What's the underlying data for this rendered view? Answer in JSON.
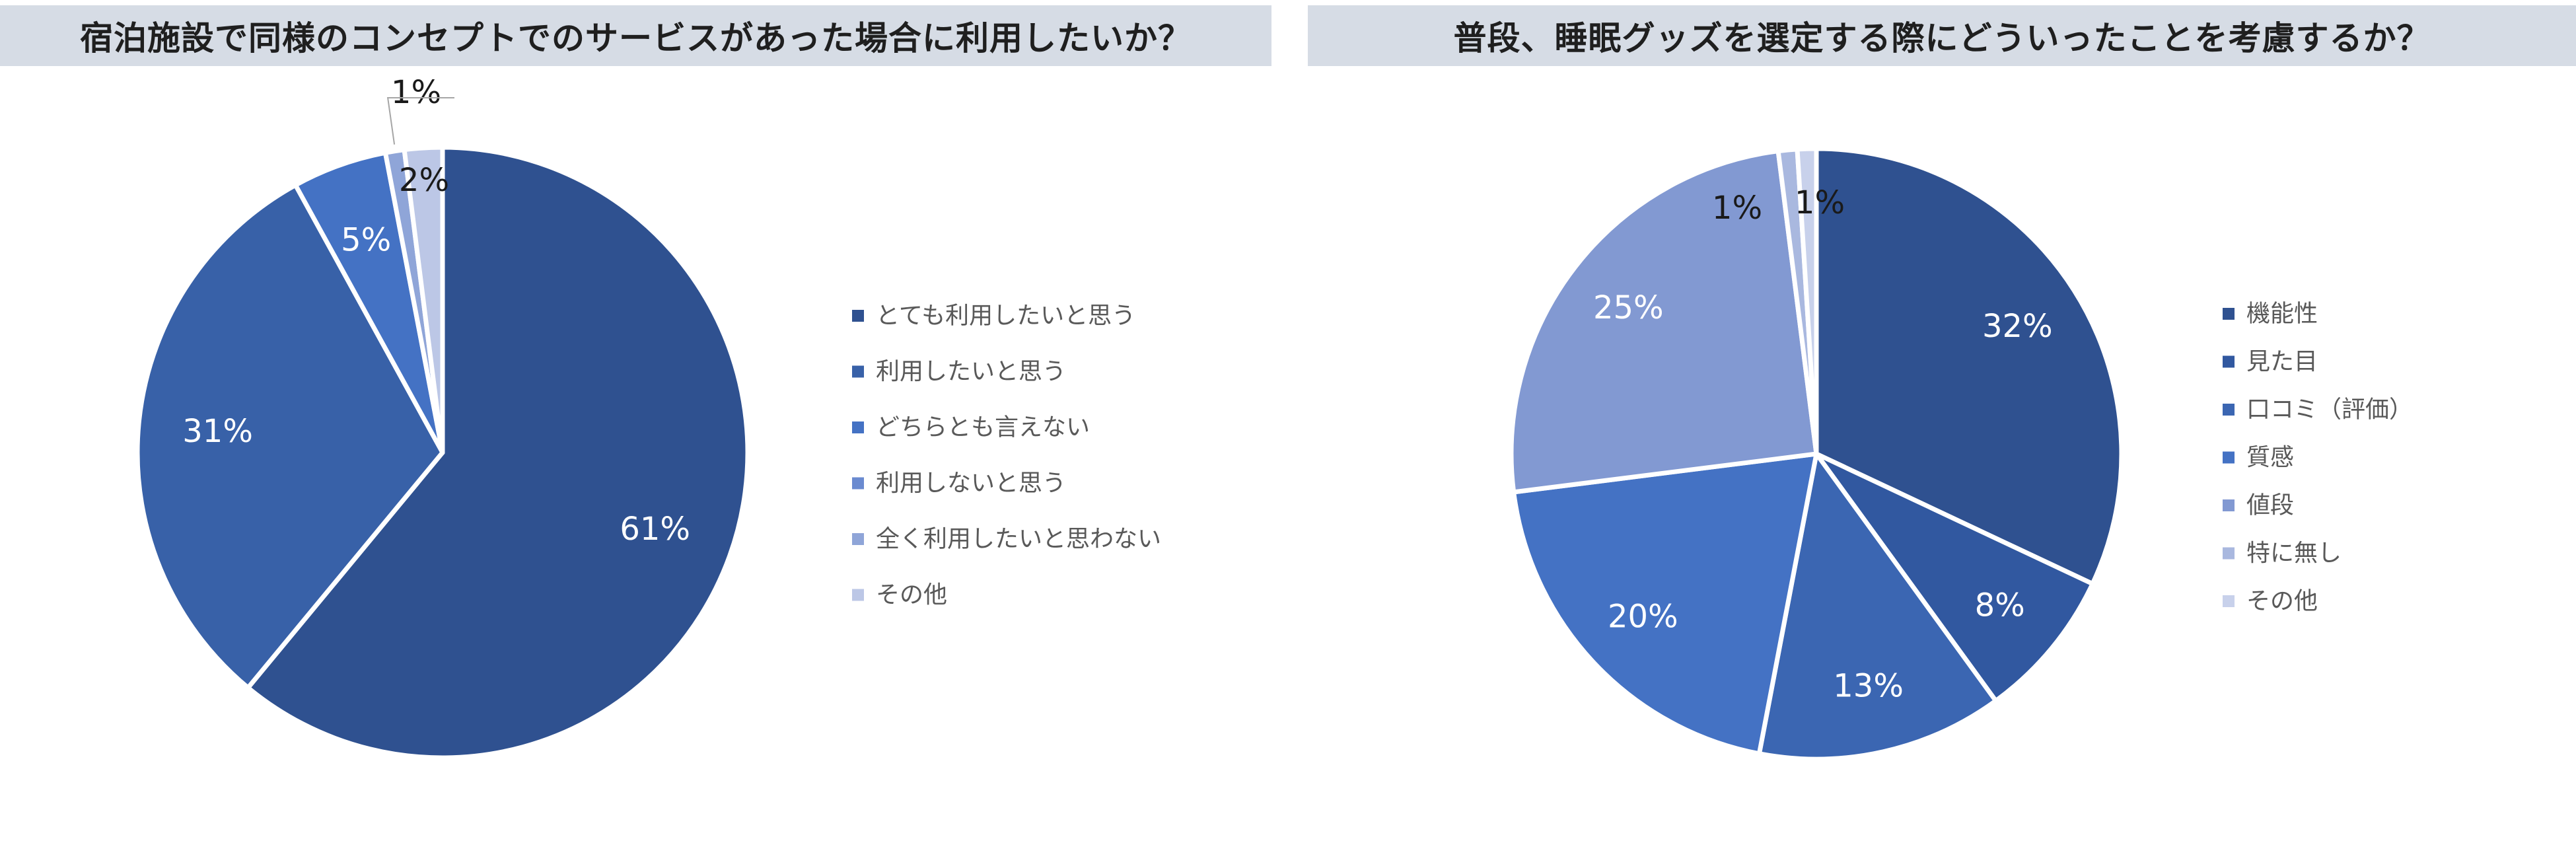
{
  "chart_data": [
    {
      "type": "pie",
      "title": "宿泊施設で同様のコンセプトでのサービスがあった場合に利用したいか？",
      "categories": [
        "とても利用したいと思う",
        "利用したいと思う",
        "どちらとも言えない",
        "利用しないと思う",
        "全く利用したいと思わない",
        "その他"
      ],
      "values": [
        61,
        31,
        5,
        0,
        1,
        2
      ],
      "data_labels": [
        "61%",
        "31%",
        "5%",
        "",
        "1%",
        "2%"
      ],
      "colors": [
        "#2f5190",
        "#3861a8",
        "#4472c4",
        "#6a8ad0",
        "#8fa5d8",
        "#bcc7e6"
      ],
      "legend_position": "right"
    },
    {
      "type": "pie",
      "title": "普段、睡眠グッズを選定する際にどういったことを考慮するか？",
      "categories": [
        "機能性",
        "見た目",
        "口コミ（評価）",
        "質感",
        "値段",
        "特に無し",
        "その他"
      ],
      "values": [
        32,
        8,
        13,
        20,
        25,
        1,
        1
      ],
      "data_labels": [
        "32%",
        "8%",
        "13%",
        "20%",
        "25%",
        "1%",
        "1%"
      ],
      "colors": [
        "#2f5190",
        "#3158a0",
        "#3b66b2",
        "#4472c4",
        "#8299d2",
        "#a9b8df",
        "#c8d1eb"
      ],
      "legend_position": "right"
    }
  ]
}
